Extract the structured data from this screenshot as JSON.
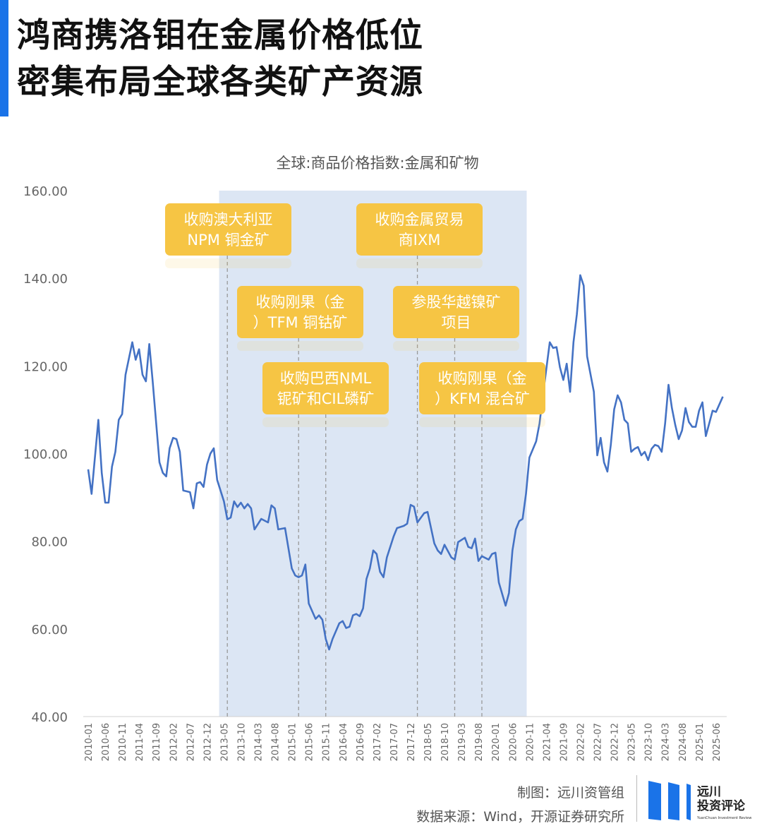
{
  "header": {
    "title_line1": "鸿商携洛钼在金属价格低位",
    "title_line2": "密集布局全球各类矿产资源"
  },
  "footer": {
    "credit": "制图：远川资管组",
    "source": "数据来源：Wind，开源证券研究所",
    "logo_line1": "远川",
    "logo_line2": "投资评论",
    "logo_sub": "YuanChuan Investment Review"
  },
  "colors": {
    "accent": "#1a73e8",
    "line": "#4472c4",
    "shade": "#dce6f4",
    "annotation": "#f6c544"
  },
  "chart_data": {
    "type": "line",
    "title": "全球:商品价格指数:金属和矿物",
    "xlabel": "",
    "ylabel": "",
    "ylim": [
      40,
      160
    ],
    "yticks": [
      "40.00",
      "60.00",
      "80.00",
      "100.00",
      "120.00",
      "140.00",
      "160.00"
    ],
    "xticks": [
      "2010-01",
      "2010-06",
      "2010-11",
      "2011-04",
      "2011-09",
      "2012-02",
      "2012-07",
      "2012-12",
      "2013-05",
      "2013-10",
      "2014-03",
      "2014-08",
      "2015-01",
      "2015-06",
      "2015-11",
      "2016-04",
      "2016-09",
      "2017-02",
      "2017-07",
      "2017-12",
      "2018-05",
      "2018-10",
      "2019-03",
      "2019-08",
      "2020-01",
      "2020-06",
      "2020-11",
      "2021-04",
      "2021-09",
      "2022-02",
      "2022-07",
      "2022-12",
      "2023-05",
      "2023-10",
      "2024-03",
      "2024-08",
      "2025-01",
      "2025-06"
    ],
    "grid": false,
    "shaded_period": [
      "2013-04",
      "2020-10"
    ],
    "series": [
      {
        "points": [
          [
            "2010-01",
            96.4
          ],
          [
            "2010-02",
            90.8
          ],
          [
            "2010-04",
            107.7
          ],
          [
            "2010-05",
            95.6
          ],
          [
            "2010-06",
            88.8
          ],
          [
            "2010-07",
            88.8
          ],
          [
            "2010-08",
            97
          ],
          [
            "2010-09",
            100.4
          ],
          [
            "2010-10",
            107.7
          ],
          [
            "2010-11",
            109
          ],
          [
            "2010-12",
            118
          ],
          [
            "2011-02",
            125.4
          ],
          [
            "2011-03",
            121.4
          ],
          [
            "2011-04",
            123.8
          ],
          [
            "2011-05",
            118
          ],
          [
            "2011-06",
            116.5
          ],
          [
            "2011-07",
            125
          ],
          [
            "2011-08",
            116.5
          ],
          [
            "2011-10",
            98
          ],
          [
            "2011-11",
            95.6
          ],
          [
            "2011-12",
            94.8
          ],
          [
            "2012-01",
            101.2
          ],
          [
            "2012-02",
            103.6
          ],
          [
            "2012-03",
            103.3
          ],
          [
            "2012-04",
            100.4
          ],
          [
            "2012-05",
            91.6
          ],
          [
            "2012-07",
            91.2
          ],
          [
            "2012-08",
            87.5
          ],
          [
            "2012-09",
            93.2
          ],
          [
            "2012-10",
            93.5
          ],
          [
            "2012-11",
            92.4
          ],
          [
            "2012-12",
            97.5
          ],
          [
            "2013-01",
            100
          ],
          [
            "2013-02",
            101.2
          ],
          [
            "2013-03",
            94
          ],
          [
            "2013-05",
            89.1
          ],
          [
            "2013-06",
            85
          ],
          [
            "2013-07",
            85.4
          ],
          [
            "2013-08",
            89.1
          ],
          [
            "2013-09",
            87.8
          ],
          [
            "2013-10",
            88.8
          ],
          [
            "2013-11",
            87.5
          ],
          [
            "2013-12",
            88.5
          ],
          [
            "2014-01",
            87.5
          ],
          [
            "2014-02",
            82.7
          ],
          [
            "2014-04",
            85.1
          ],
          [
            "2014-06",
            84.3
          ],
          [
            "2014-07",
            88.2
          ],
          [
            "2014-08",
            87.5
          ],
          [
            "2014-09",
            82.7
          ],
          [
            "2014-11",
            83
          ],
          [
            "2015-01",
            73.8
          ],
          [
            "2015-02",
            72.2
          ],
          [
            "2015-03",
            71.8
          ],
          [
            "2015-04",
            72.2
          ],
          [
            "2015-05",
            74.7
          ],
          [
            "2015-06",
            65.8
          ],
          [
            "2015-08",
            62.3
          ],
          [
            "2015-09",
            63.1
          ],
          [
            "2015-10",
            62.1
          ],
          [
            "2015-11",
            57.7
          ],
          [
            "2015-12",
            55.3
          ],
          [
            "2016-01",
            57.7
          ],
          [
            "2016-03",
            61.3
          ],
          [
            "2016-04",
            61.8
          ],
          [
            "2016-05",
            60.2
          ],
          [
            "2016-06",
            60.5
          ],
          [
            "2016-07",
            63.1
          ],
          [
            "2016-08",
            63.4
          ],
          [
            "2016-09",
            62.9
          ],
          [
            "2016-10",
            64.7
          ],
          [
            "2016-11",
            71.4
          ],
          [
            "2016-12",
            73.8
          ],
          [
            "2017-01",
            77.9
          ],
          [
            "2017-02",
            77.1
          ],
          [
            "2017-03",
            73
          ],
          [
            "2017-04",
            71.8
          ],
          [
            "2017-05",
            76.3
          ],
          [
            "2017-07",
            81.1
          ],
          [
            "2017-08",
            83
          ],
          [
            "2017-10",
            83.5
          ],
          [
            "2017-11",
            84
          ],
          [
            "2017-12",
            88.3
          ],
          [
            "2018-01",
            87.9
          ],
          [
            "2018-02",
            84.3
          ],
          [
            "2018-04",
            86.4
          ],
          [
            "2018-05",
            86.7
          ],
          [
            "2018-07",
            79.5
          ],
          [
            "2018-08",
            77.9
          ],
          [
            "2018-09",
            77.1
          ],
          [
            "2018-10",
            79.2
          ],
          [
            "2018-12",
            76.3
          ],
          [
            "2019-01",
            75.8
          ],
          [
            "2019-02",
            79.8
          ],
          [
            "2019-04",
            80.8
          ],
          [
            "2019-05",
            78.7
          ],
          [
            "2019-06",
            78.4
          ],
          [
            "2019-07",
            80.6
          ],
          [
            "2019-08",
            75.5
          ],
          [
            "2019-09",
            76.6
          ],
          [
            "2019-11",
            75.8
          ],
          [
            "2019-12",
            77.1
          ],
          [
            "2020-01",
            77.4
          ],
          [
            "2020-02",
            70.6
          ],
          [
            "2020-04",
            65.3
          ],
          [
            "2020-05",
            68.2
          ],
          [
            "2020-06",
            77.9
          ],
          [
            "2020-07",
            82.7
          ],
          [
            "2020-08",
            84.6
          ],
          [
            "2020-09",
            85.1
          ],
          [
            "2020-10",
            90.8
          ],
          [
            "2020-11",
            99.1
          ],
          [
            "2021-01",
            102.8
          ],
          [
            "2021-02",
            106.9
          ],
          [
            "2021-03",
            113.3
          ],
          [
            "2021-05",
            125.4
          ],
          [
            "2021-06",
            124.1
          ],
          [
            "2021-07",
            124.3
          ],
          [
            "2021-08",
            119.7
          ],
          [
            "2021-09",
            116.8
          ],
          [
            "2021-10",
            120.5
          ],
          [
            "2021-11",
            114.1
          ],
          [
            "2021-12",
            125.4
          ],
          [
            "2022-01",
            131.8
          ],
          [
            "2022-02",
            140.7
          ],
          [
            "2022-03",
            138.3
          ],
          [
            "2022-04",
            122.2
          ],
          [
            "2022-06",
            114.1
          ],
          [
            "2022-07",
            99.6
          ],
          [
            "2022-08",
            103.6
          ],
          [
            "2022-09",
            98
          ],
          [
            "2022-10",
            95.9
          ],
          [
            "2022-11",
            102
          ],
          [
            "2022-12",
            110.1
          ],
          [
            "2023-01",
            113.3
          ],
          [
            "2023-02",
            111.7
          ],
          [
            "2023-03",
            107.7
          ],
          [
            "2023-04",
            106.9
          ],
          [
            "2023-05",
            100.4
          ],
          [
            "2023-06",
            101.1
          ],
          [
            "2023-07",
            101.5
          ],
          [
            "2023-08",
            99.6
          ],
          [
            "2023-09",
            100.4
          ],
          [
            "2023-10",
            98.5
          ],
          [
            "2023-11",
            101.1
          ],
          [
            "2023-12",
            102
          ],
          [
            "2024-01",
            101.7
          ],
          [
            "2024-02",
            100.4
          ],
          [
            "2024-03",
            106.9
          ],
          [
            "2024-04",
            115.7
          ],
          [
            "2024-05",
            110.4
          ],
          [
            "2024-06",
            106.5
          ],
          [
            "2024-07",
            103.3
          ],
          [
            "2024-08",
            105.3
          ],
          [
            "2024-09",
            110.4
          ],
          [
            "2024-10",
            107.2
          ],
          [
            "2024-11",
            106.1
          ],
          [
            "2024-12",
            106.1
          ],
          [
            "2025-01",
            109.8
          ],
          [
            "2025-02",
            111.7
          ],
          [
            "2025-03",
            104
          ],
          [
            "2025-04",
            106.9
          ],
          [
            "2025-05",
            109.8
          ],
          [
            "2025-06",
            109.5
          ],
          [
            "2025-08",
            113
          ]
        ]
      }
    ],
    "annotations": [
      {
        "date": "2013-06",
        "line1": "收购澳大利亚",
        "line2": "NPM 铜金矿",
        "row": 0
      },
      {
        "date": "2015-03",
        "line1": "收购刚果（金",
        "line2": "）TFM 铜钴矿",
        "row": 1
      },
      {
        "date": "2015-11",
        "line1": "收购巴西NML",
        "line2": "铌矿和CIL磷矿",
        "row": 2
      },
      {
        "date": "2018-02",
        "line1": "收购金属贸易",
        "line2": "商IXM",
        "row": 0
      },
      {
        "date": "2019-01",
        "line1": "参股华越镍矿",
        "line2": "项目",
        "row": 1
      },
      {
        "date": "2019-09",
        "line1": "收购刚果（金",
        "line2": "）KFM 混合矿",
        "row": 2
      }
    ]
  }
}
